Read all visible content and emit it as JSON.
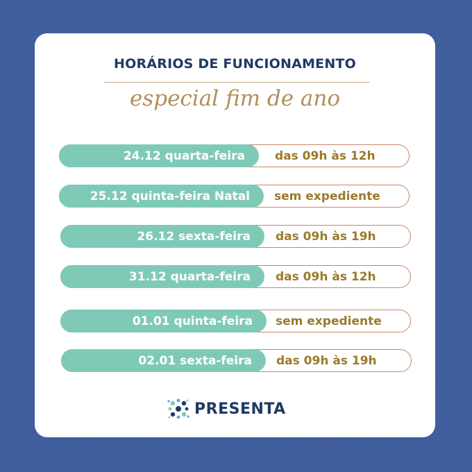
{
  "header": {
    "title": "HORÁRIOS DE FUNCIONAMENTO",
    "subtitle": "especial fim de ano"
  },
  "schedule": [
    {
      "day": "24.12 quarta-feira",
      "hours": "das 09h às 12h"
    },
    {
      "day": "25.12 quinta-feira Natal",
      "hours": "sem expediente"
    },
    {
      "day": "26.12 sexta-feira",
      "hours": "das 09h às 19h"
    },
    {
      "day": "31.12 quarta-feira",
      "hours": "das 09h às 12h"
    },
    {
      "day": "01.01 quinta-feira",
      "hours": "sem expediente"
    },
    {
      "day": "02.01 sexta-feira",
      "hours": "das 09h às 19h"
    }
  ],
  "brand": {
    "name": "PRESENTA",
    "colors": {
      "navy": "#1f3a63",
      "teal": "#7fcab7",
      "gold": "#9b7a2c",
      "background": "#3f5d9e"
    },
    "logo_icon": "molecule-dots-icon"
  }
}
